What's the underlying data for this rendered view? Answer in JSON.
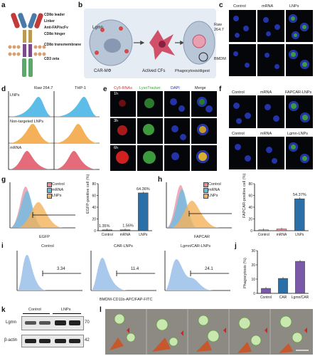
{
  "panel_letters": {
    "a": "a",
    "b": "b",
    "c": "c",
    "d": "d",
    "e": "e",
    "f": "f",
    "g": "g",
    "h": "h",
    "i": "i",
    "j": "j",
    "k": "k",
    "l": "l"
  },
  "a": {
    "labels": [
      "CD8α leader",
      "Linker",
      "Anti-FAP/scFv",
      "CD8α hinger",
      "CD8α transmembrane",
      "CD3 zeta"
    ],
    "colors": [
      "#c23a3a",
      "#8c6a3a",
      "#4a7aa8",
      "#b89a55",
      "#7a4a8a",
      "#5aa86a"
    ]
  },
  "b": {
    "lgmn": "Lgmn",
    "car": "CAR-MΦ",
    "cfs": "Actived CFs",
    "phago": "Phagocytosis/digest"
  },
  "c": {
    "cols": [
      "Control",
      "mRNA",
      "LNPs"
    ],
    "rows": [
      "Raw 264.7",
      "BMDM"
    ]
  },
  "d": {
    "cols": [
      "Raw 264.7",
      "THP-1"
    ],
    "rows": [
      "LNPs",
      "Non-targeted LNPs",
      "mRNA"
    ]
  },
  "e": {
    "cols": [
      "Cy5-RNAs",
      "LysoTracker",
      "DAPI",
      "Merge"
    ],
    "rows": [
      "1h",
      "3h",
      "6h"
    ]
  },
  "f": {
    "row1": [
      "Control",
      "mRNA",
      "FAPCAR-LNPs"
    ],
    "row2": [
      "Control",
      "mRNA",
      "Lgmn-LNPs"
    ]
  },
  "g": {
    "legend": [
      "Control",
      "mRNA",
      "LNPs"
    ],
    "xlabel": "EGFP",
    "ylabel": "EGFP-positive cell (%)",
    "bar_labels": [
      "1.35%",
      "1.56%",
      "64.36%"
    ],
    "categories": [
      "Control",
      "mRNA",
      "LNPs"
    ]
  },
  "h": {
    "legend": [
      "Control",
      "mRNA",
      "LNPs"
    ],
    "xlabel": "FAPCAR",
    "ylabel": "FAPCAR-positive cell (%)",
    "bar_labels": [
      "54.37%"
    ],
    "categories": [
      "Control",
      "mRNA",
      "LNPs"
    ]
  },
  "i": {
    "titles": [
      "Control",
      "CAR-LNPs",
      "Lgmn/CAR-LNPs"
    ],
    "gates": [
      "3.34",
      "11.4",
      "24.1"
    ],
    "xlabel": "BMDM-CD11b-APC/FAP-FITC"
  },
  "j": {
    "ylabel": "Phagocytosis (%)",
    "categories": [
      "Control",
      "CAR",
      "Lgmn/CAR"
    ]
  },
  "k": {
    "groups": [
      "Control",
      "LNPs"
    ],
    "rows": [
      "Lgmn",
      "β-actin"
    ],
    "markers": [
      "70",
      "42"
    ]
  },
  "colors": {
    "control": "#e58a9a",
    "mrna": "#5bbde8",
    "lnps": "#f4b15a",
    "bar_g": "#2a6fa8",
    "bar_j": "#7a5aa8",
    "hist": "#a9c9ec",
    "gate": "#000000"
  },
  "chart_data": [
    {
      "panel": "g",
      "type": "bar",
      "categories": [
        "Control",
        "mRNA",
        "LNPs"
      ],
      "values": [
        1.35,
        1.56,
        64.36
      ],
      "ylim": [
        0,
        80
      ],
      "yticks": [
        0,
        20,
        40,
        60,
        80
      ]
    },
    {
      "panel": "h",
      "type": "bar",
      "categories": [
        "Control",
        "mRNA",
        "LNPs"
      ],
      "values": [
        1.5,
        3,
        54.37
      ],
      "ylim": [
        0,
        80
      ],
      "yticks": [
        0,
        20,
        40,
        60,
        80
      ]
    },
    {
      "panel": "j",
      "type": "bar",
      "categories": [
        "Control",
        "CAR",
        "Lgmn/CAR"
      ],
      "values": [
        3.5,
        10.5,
        22.5
      ],
      "ylim": [
        0,
        30
      ],
      "yticks": [
        0,
        10,
        20,
        30
      ]
    }
  ]
}
